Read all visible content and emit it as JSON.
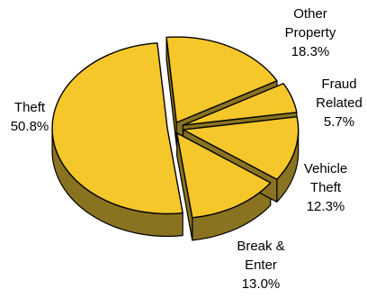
{
  "chart_data": {
    "type": "pie",
    "style": "3d-exploded",
    "slices": [
      {
        "label_lines": [
          "Other",
          "Property"
        ],
        "value": 18.3,
        "value_text": "18.3%"
      },
      {
        "label_lines": [
          "Fraud",
          "Related"
        ],
        "value": 5.7,
        "value_text": "5.7%"
      },
      {
        "label_lines": [
          "Vehicle",
          "Theft"
        ],
        "value": 12.3,
        "value_text": "12.3%"
      },
      {
        "label_lines": [
          "Break &",
          "Enter"
        ],
        "value": 13.0,
        "value_text": "13.0%"
      },
      {
        "label_lines": [
          "Theft"
        ],
        "value": 50.8,
        "value_text": "50.8%"
      }
    ],
    "colors": {
      "top": "#f5c72a",
      "side": "#8a7320",
      "edge": "#000000"
    },
    "legend": "none"
  }
}
